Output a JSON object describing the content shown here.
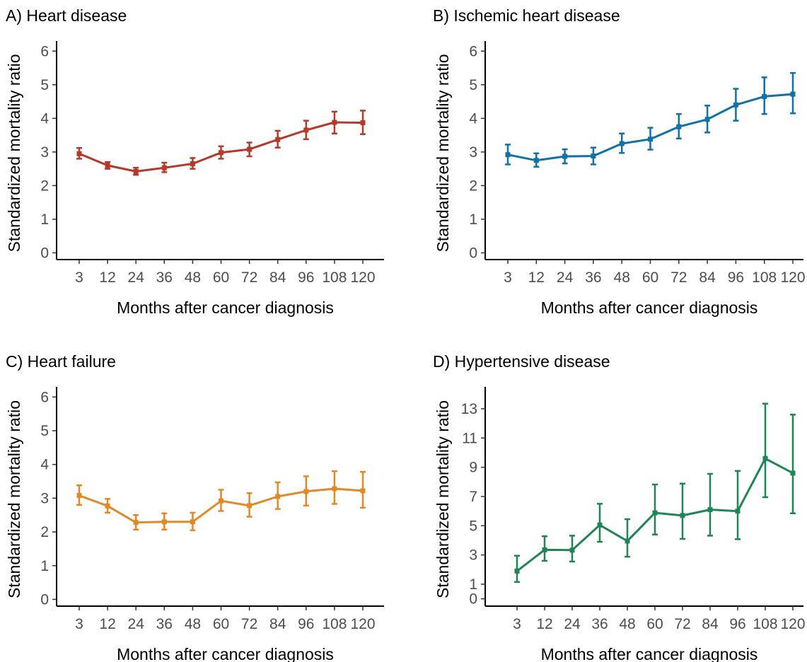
{
  "chart_data": [
    {
      "type": "line",
      "title": "A) Heart disease",
      "xlabel": "Months after cancer diagnosis",
      "ylabel": "Standardized mortality ratio",
      "categories": [
        "3",
        "12",
        "24",
        "36",
        "48",
        "60",
        "72",
        "84",
        "96",
        "108",
        "120"
      ],
      "values": [
        2.95,
        2.6,
        2.42,
        2.53,
        2.65,
        2.98,
        3.08,
        3.37,
        3.65,
        3.88,
        3.87
      ],
      "lower": [
        2.8,
        2.5,
        2.32,
        2.4,
        2.5,
        2.8,
        2.87,
        3.13,
        3.38,
        3.55,
        3.53
      ],
      "upper": [
        3.12,
        2.7,
        2.53,
        2.68,
        2.82,
        3.17,
        3.28,
        3.63,
        3.93,
        4.2,
        4.23
      ],
      "yticks": [
        0,
        1,
        2,
        3,
        4,
        5,
        6
      ],
      "ylim": [
        -0.2,
        6.3
      ],
      "color": "#b33a2a",
      "grid": false
    },
    {
      "type": "line",
      "title": "B) Ischemic heart disease",
      "xlabel": "Months after cancer diagnosis",
      "ylabel": "Standardized mortality ratio",
      "categories": [
        "3",
        "12",
        "24",
        "36",
        "48",
        "60",
        "72",
        "84",
        "96",
        "108",
        "120"
      ],
      "values": [
        2.92,
        2.75,
        2.87,
        2.88,
        3.25,
        3.38,
        3.75,
        3.97,
        4.4,
        4.65,
        4.72
      ],
      "lower": [
        2.63,
        2.56,
        2.66,
        2.63,
        2.97,
        3.07,
        3.4,
        3.58,
        3.93,
        4.13,
        4.15
      ],
      "upper": [
        3.22,
        2.96,
        3.08,
        3.13,
        3.55,
        3.72,
        4.13,
        4.38,
        4.88,
        5.22,
        5.35
      ],
      "yticks": [
        0,
        1,
        2,
        3,
        4,
        5,
        6
      ],
      "ylim": [
        -0.2,
        6.3
      ],
      "color": "#0f71a8",
      "grid": false
    },
    {
      "type": "line",
      "title": "C) Heart failure",
      "xlabel": "Months after cancer diagnosis",
      "ylabel": "Standardized mortality ratio",
      "categories": [
        "3",
        "12",
        "24",
        "36",
        "48",
        "60",
        "72",
        "84",
        "96",
        "108",
        "120"
      ],
      "values": [
        3.08,
        2.77,
        2.28,
        2.3,
        2.3,
        2.92,
        2.78,
        3.05,
        3.2,
        3.28,
        3.22
      ],
      "lower": [
        2.8,
        2.57,
        2.07,
        2.07,
        2.05,
        2.62,
        2.45,
        2.68,
        2.78,
        2.83,
        2.72
      ],
      "upper": [
        3.38,
        2.98,
        2.5,
        2.55,
        2.57,
        3.25,
        3.15,
        3.47,
        3.65,
        3.8,
        3.78
      ],
      "yticks": [
        0,
        1,
        2,
        3,
        4,
        5,
        6
      ],
      "ylim": [
        -0.2,
        6.3
      ],
      "color": "#e08a27",
      "grid": false
    },
    {
      "type": "line",
      "title": "D) Hypertensive disease",
      "xlabel": "Months after cancer diagnosis",
      "ylabel": "Standardized mortality ratio",
      "categories": [
        "3",
        "12",
        "24",
        "36",
        "48",
        "60",
        "72",
        "84",
        "96",
        "108",
        "120"
      ],
      "values": [
        1.9,
        3.35,
        3.33,
        5.05,
        3.95,
        5.88,
        5.7,
        6.1,
        6.0,
        9.6,
        8.6
      ],
      "lower": [
        1.15,
        2.6,
        2.55,
        3.9,
        2.88,
        4.4,
        4.1,
        4.32,
        4.08,
        6.95,
        5.85
      ],
      "upper": [
        2.95,
        4.28,
        4.32,
        6.5,
        5.45,
        7.82,
        7.88,
        8.55,
        8.75,
        13.35,
        12.6
      ],
      "yticks": [
        0,
        1,
        3,
        5,
        7,
        9,
        11,
        13
      ],
      "ylim": [
        -0.5,
        14.5
      ],
      "color": "#1f8554",
      "grid": false
    }
  ]
}
